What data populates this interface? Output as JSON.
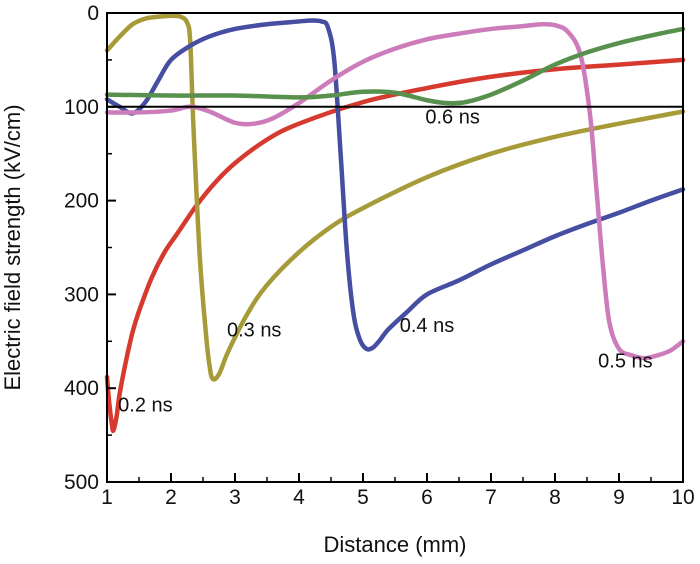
{
  "chart_data": {
    "type": "line",
    "title": "",
    "xlabel": "Distance (mm)",
    "ylabel": "Electric field strength (kV/cm)",
    "xlim": [
      1,
      10
    ],
    "ylim": [
      0,
      500
    ],
    "y_inverted": true,
    "grid": false,
    "legend": "none",
    "xticks": [
      "1",
      "2",
      "3",
      "4",
      "5",
      "6",
      "7",
      "8",
      "9",
      "10"
    ],
    "yticks": [
      "0",
      "100",
      "200",
      "300",
      "400",
      "500"
    ],
    "reference_lines": [
      {
        "y": 100,
        "color": "#000000"
      }
    ],
    "series": [
      {
        "name": "0.2 ns",
        "color": "#d63a2f",
        "label_at": [
          1.6,
          425
        ],
        "x": [
          1.0,
          1.02,
          1.05,
          1.08,
          1.1,
          1.15,
          1.2,
          1.3,
          1.4,
          1.5,
          1.7,
          1.9,
          2.1,
          2.4,
          2.7,
          3.0,
          3.5,
          4.0,
          5.0,
          6.0,
          7.0,
          8.0,
          9.0,
          10.0
        ],
        "y": [
          388,
          405,
          425,
          440,
          445,
          430,
          405,
          370,
          340,
          318,
          282,
          255,
          235,
          205,
          180,
          160,
          135,
          118,
          95,
          80,
          68,
          60,
          55,
          50
        ]
      },
      {
        "name": "0.3 ns",
        "color": "#a79a38",
        "label_at": [
          3.3,
          345
        ],
        "x": [
          1.0,
          1.2,
          1.4,
          1.6,
          1.8,
          2.0,
          2.15,
          2.25,
          2.3,
          2.35,
          2.45,
          2.55,
          2.6,
          2.65,
          2.75,
          2.9,
          3.2,
          3.5,
          4.0,
          4.5,
          5.0,
          6.0,
          7.0,
          8.0,
          9.0,
          10.0
        ],
        "y": [
          40,
          25,
          12,
          6,
          4,
          3,
          4,
          10,
          30,
          120,
          260,
          345,
          375,
          390,
          385,
          360,
          320,
          290,
          255,
          228,
          208,
          175,
          150,
          132,
          118,
          105
        ]
      },
      {
        "name": "0.4 ns",
        "color": "#464ea2",
        "label_at": [
          6.0,
          340
        ],
        "x": [
          1.0,
          1.2,
          1.4,
          1.6,
          1.8,
          2.0,
          2.3,
          2.6,
          3.0,
          3.5,
          4.0,
          4.2,
          4.35,
          4.45,
          4.55,
          4.65,
          4.75,
          4.85,
          4.95,
          5.05,
          5.15,
          5.25,
          5.4,
          5.7,
          6.0,
          6.5,
          7.0,
          7.5,
          8.0,
          8.5,
          9.0,
          9.5,
          10.0
        ],
        "y": [
          92,
          100,
          107,
          95,
          72,
          50,
          35,
          25,
          17,
          12,
          9,
          8,
          9,
          15,
          50,
          150,
          255,
          320,
          348,
          358,
          357,
          350,
          337,
          318,
          300,
          285,
          268,
          253,
          238,
          225,
          213,
          200,
          188
        ]
      },
      {
        "name": "0.5 ns",
        "color": "#cd7cbb",
        "label_at": [
          9.1,
          378
        ],
        "x": [
          1.0,
          1.5,
          2.0,
          2.3,
          2.6,
          3.0,
          3.3,
          3.6,
          4.0,
          4.5,
          5.0,
          5.5,
          6.0,
          6.5,
          7.0,
          7.5,
          7.8,
          8.0,
          8.2,
          8.4,
          8.55,
          8.65,
          8.75,
          8.85,
          9.0,
          9.2,
          9.4,
          9.6,
          9.8,
          10.0
        ],
        "y": [
          106,
          106,
          104,
          100,
          105,
          117,
          118,
          112,
          96,
          72,
          52,
          38,
          28,
          22,
          17,
          14,
          12,
          13,
          20,
          45,
          110,
          190,
          270,
          330,
          358,
          365,
          368,
          365,
          360,
          350
        ]
      },
      {
        "name": "0.6 ns",
        "color": "#58914d",
        "label_at": [
          6.4,
          118
        ],
        "x": [
          1.0,
          2.0,
          3.0,
          4.0,
          4.5,
          5.0,
          5.5,
          6.0,
          6.3,
          6.6,
          7.0,
          7.5,
          8.0,
          8.5,
          9.0,
          9.5,
          10.0
        ],
        "y": [
          87,
          88,
          88,
          90,
          88,
          84,
          85,
          93,
          96,
          95,
          87,
          72,
          55,
          42,
          32,
          24,
          17
        ]
      }
    ]
  }
}
